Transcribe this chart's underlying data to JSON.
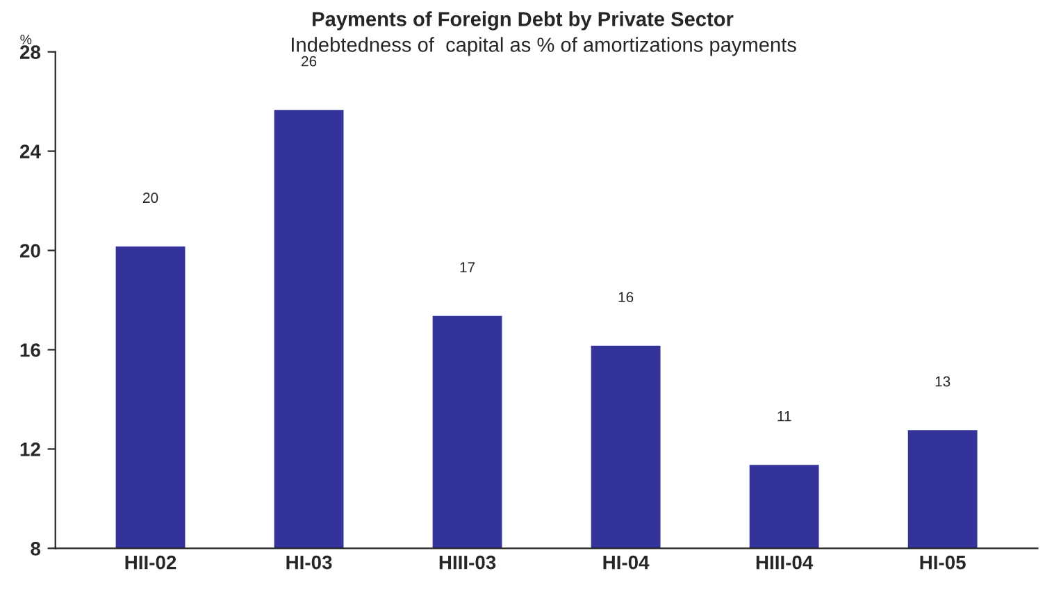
{
  "chart_data": {
    "type": "bar",
    "title": "Payments of Foreign Debt by Private Sector",
    "subtitle": "Indebtedness of  capital as % of amortizations payments",
    "ylabel": "%",
    "categories": [
      "HII-02",
      "HI-03",
      "HIII-03",
      "HI-04",
      "HIII-04",
      "HI-05"
    ],
    "values": [
      20.2,
      25.7,
      17.4,
      16.2,
      11.4,
      12.8
    ],
    "value_labels": [
      "20",
      "26",
      "17",
      "16",
      "11",
      "13"
    ],
    "color": "#333399",
    "ylim": [
      8,
      28
    ],
    "yticks": [
      8,
      12,
      16,
      20,
      24,
      28
    ],
    "grid": false,
    "legend": false
  }
}
